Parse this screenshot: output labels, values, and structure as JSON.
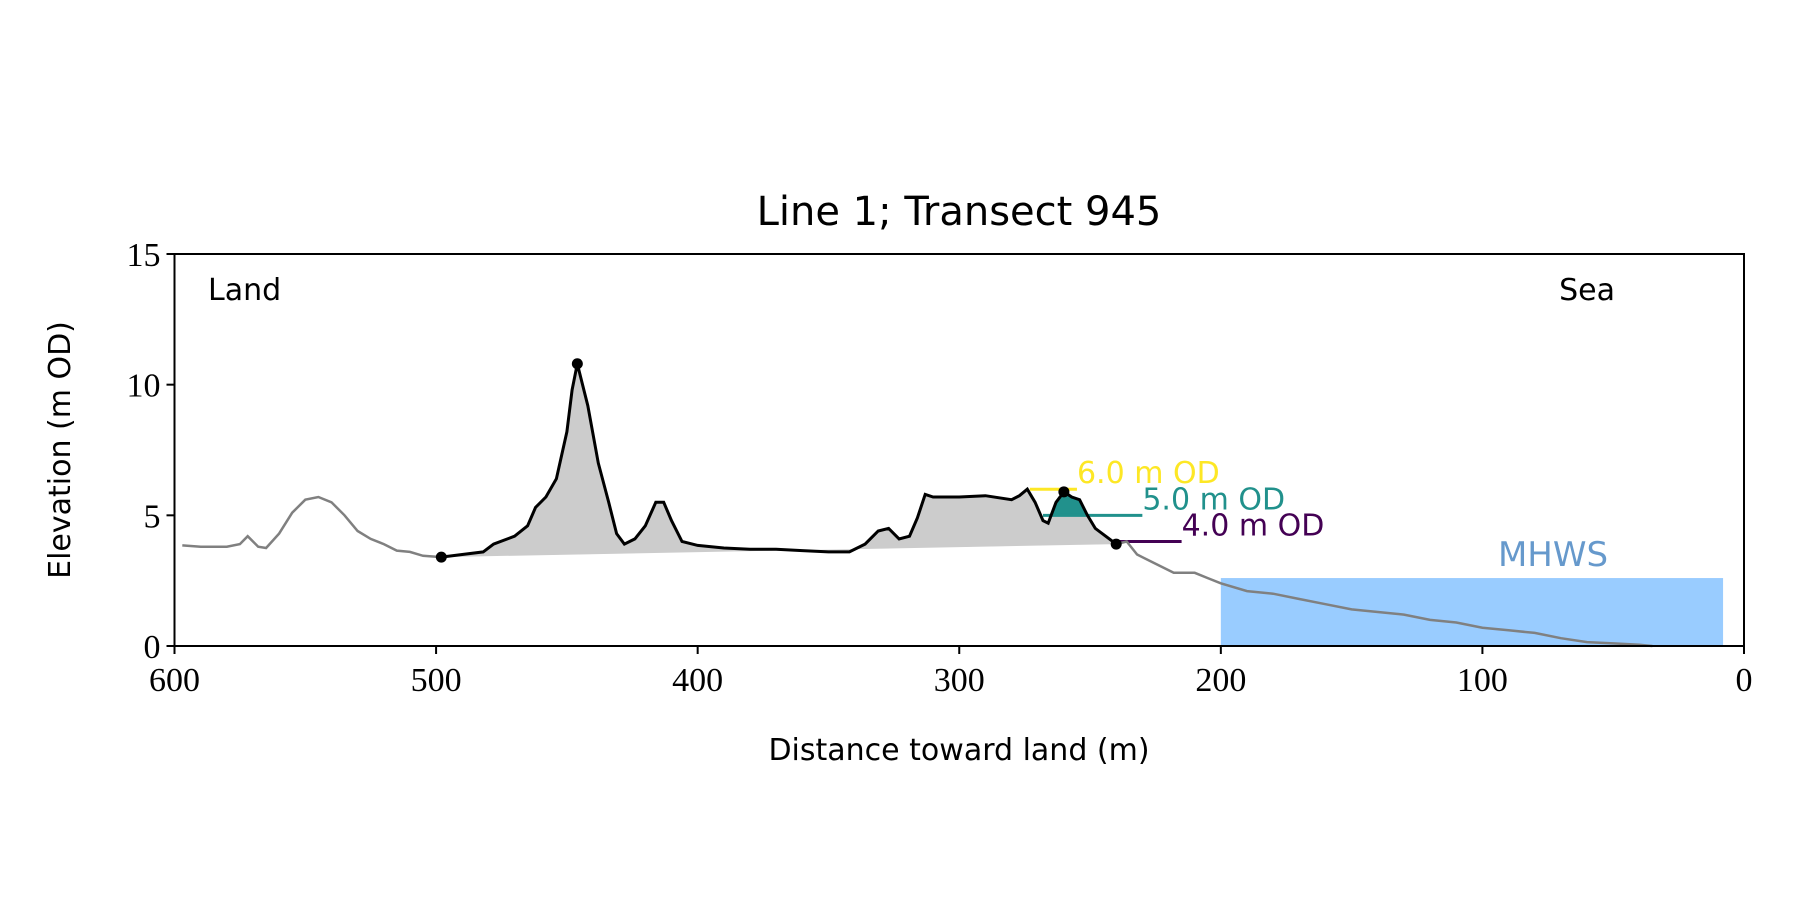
{
  "chart_data": {
    "type": "profile",
    "title": "Line 1; Transect 945",
    "x_label": "Distance toward land (m)",
    "y_label": "Elevation (m OD)",
    "annotations": {
      "land": "Land",
      "sea": "Sea"
    },
    "xlim": [
      600,
      0
    ],
    "ylim": [
      0,
      15
    ],
    "xticks": [
      600,
      500,
      400,
      300,
      200,
      100,
      0
    ],
    "yticks": [
      0,
      5,
      10,
      15
    ],
    "profile": {
      "color": "#808080",
      "x": [
        597,
        590,
        580,
        575,
        572,
        568,
        565,
        560,
        555,
        550,
        545,
        540,
        535,
        530,
        525,
        520,
        515,
        510,
        505,
        498,
        null,
        240,
        236,
        232,
        226,
        218,
        210,
        205,
        200,
        190,
        180,
        170,
        160,
        150,
        140,
        130,
        120,
        110,
        100,
        90,
        80,
        70,
        60,
        50,
        40,
        35
      ],
      "y": [
        3.85,
        3.8,
        3.8,
        3.9,
        4.2,
        3.8,
        3.75,
        4.3,
        5.1,
        5.6,
        5.7,
        5.5,
        5.0,
        4.4,
        4.1,
        3.9,
        3.65,
        3.6,
        3.45,
        3.4,
        null,
        3.9,
        4.0,
        3.5,
        3.2,
        2.8,
        2.8,
        2.6,
        2.4,
        2.1,
        2.0,
        1.8,
        1.6,
        1.4,
        1.3,
        1.2,
        1.0,
        0.9,
        0.7,
        0.6,
        0.5,
        0.3,
        0.15,
        0.1,
        0.05,
        0.0
      ]
    },
    "dune": {
      "color": "#000000",
      "fill": "#cccccc",
      "x": [
        498,
        490,
        482,
        478,
        470,
        465,
        462,
        458,
        454,
        450,
        448,
        446,
        442,
        438,
        434,
        431,
        428,
        424,
        420,
        416,
        413,
        410,
        406,
        400,
        390,
        380,
        370,
        360,
        350,
        342,
        336,
        331,
        327,
        323,
        319,
        316,
        313,
        310,
        300,
        290,
        280,
        277,
        274,
        271,
        268,
        266,
        263,
        260,
        257,
        254,
        251,
        248,
        244,
        240
      ],
      "y": [
        3.4,
        3.5,
        3.6,
        3.9,
        4.2,
        4.6,
        5.3,
        5.7,
        6.4,
        8.2,
        9.8,
        10.8,
        9.2,
        7.0,
        5.5,
        4.3,
        3.9,
        4.1,
        4.6,
        5.5,
        5.5,
        4.8,
        4.0,
        3.85,
        3.75,
        3.7,
        3.7,
        3.65,
        3.6,
        3.6,
        3.9,
        4.4,
        4.5,
        4.1,
        4.2,
        4.9,
        5.8,
        5.7,
        5.7,
        5.75,
        5.6,
        5.75,
        6.0,
        5.5,
        4.8,
        4.7,
        5.5,
        5.9,
        5.7,
        5.6,
        5.0,
        4.5,
        4.2,
        3.9
      ]
    },
    "points": {
      "x": [
        498,
        446,
        260,
        240
      ],
      "y": [
        3.4,
        10.8,
        5.9,
        3.9
      ]
    },
    "levels": [
      {
        "name": "6.0 m OD",
        "value": 6.0,
        "x": [
          273,
          255
        ],
        "color": "#fde725"
      },
      {
        "name": "5.0 m OD",
        "value": 5.0,
        "x": [
          268,
          230
        ],
        "color": "#21918c"
      },
      {
        "name": "4.0 m OD",
        "value": 4.0,
        "x": [
          240,
          215
        ],
        "color": "#440154"
      }
    ],
    "mhws": {
      "name": "MHWS",
      "value": 2.6,
      "x": [
        200,
        8
      ],
      "color": "#99ccff",
      "label_color": "#6699cc"
    }
  }
}
